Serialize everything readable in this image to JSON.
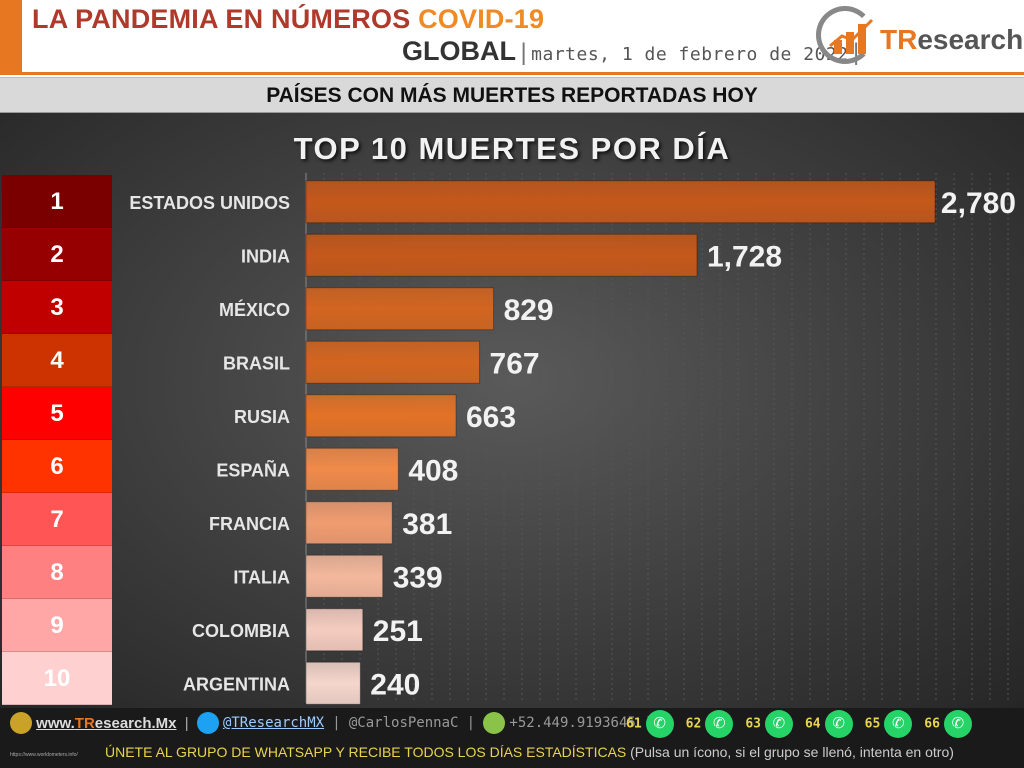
{
  "header": {
    "title_main": "LA PANDEMIA EN NÚMEROS",
    "title_accent": "COVID-19",
    "scope": "GLOBAL",
    "date": "martes, 1 de febrero de 2022",
    "logo_text_accent": "TR",
    "logo_text": "esearch"
  },
  "banner": {
    "text": "PAÍSES CON MÁS MUERTES REPORTADAS HOY"
  },
  "chart_data": {
    "type": "bar",
    "orientation": "horizontal",
    "title": "TOP 10 MUERTES POR DÍA",
    "ranks": [
      "1",
      "2",
      "3",
      "4",
      "5",
      "6",
      "7",
      "8",
      "9",
      "10"
    ],
    "rank_colors": [
      "#7a0000",
      "#960000",
      "#c00000",
      "#cc3300",
      "#ff0000",
      "#ff3300",
      "#ff5555",
      "#ff8080",
      "#ffa6a6",
      "#ffd0d0"
    ],
    "bar_colors": [
      "#c5581b",
      "#c5581b",
      "#d3651f",
      "#d3651f",
      "#e27227",
      "#ef8a4a",
      "#f09c70",
      "#f3b89c",
      "#f5ccc0",
      "#f5d6cc"
    ],
    "categories": [
      "ESTADOS UNIDOS",
      "INDIA",
      "MÉXICO",
      "BRASIL",
      "RUSIA",
      "ESPAÑA",
      "FRANCIA",
      "ITALIA",
      "COLOMBIA",
      "ARGENTINA"
    ],
    "values": [
      2780,
      1728,
      829,
      767,
      663,
      408,
      381,
      339,
      251,
      240
    ],
    "value_labels": [
      "2,780",
      "1,728",
      "829",
      "767",
      "663",
      "408",
      "381",
      "339",
      "251",
      "240"
    ],
    "xlim": [
      0,
      2780
    ],
    "grid": true
  },
  "footer": {
    "website_accent": "TR",
    "website": "esearch.Mx",
    "website_prefix": "www.",
    "twitter": "@TResearchMX",
    "personal": "@CarlosPennaC",
    "phone": "+52.449.9193645",
    "whatsapp_groups": [
      "61",
      "62",
      "63",
      "64",
      "65",
      "66"
    ],
    "invite": "ÚNETE AL GRUPO DE WHATSAPP Y RECIBE TODOS LOS DÍAS ESTADÍSTICAS",
    "invite_note": "(Pulsa un ícono, si el grupo se llenó, intenta en otro)",
    "tiny_url": "https://www.worldometers.info/"
  }
}
